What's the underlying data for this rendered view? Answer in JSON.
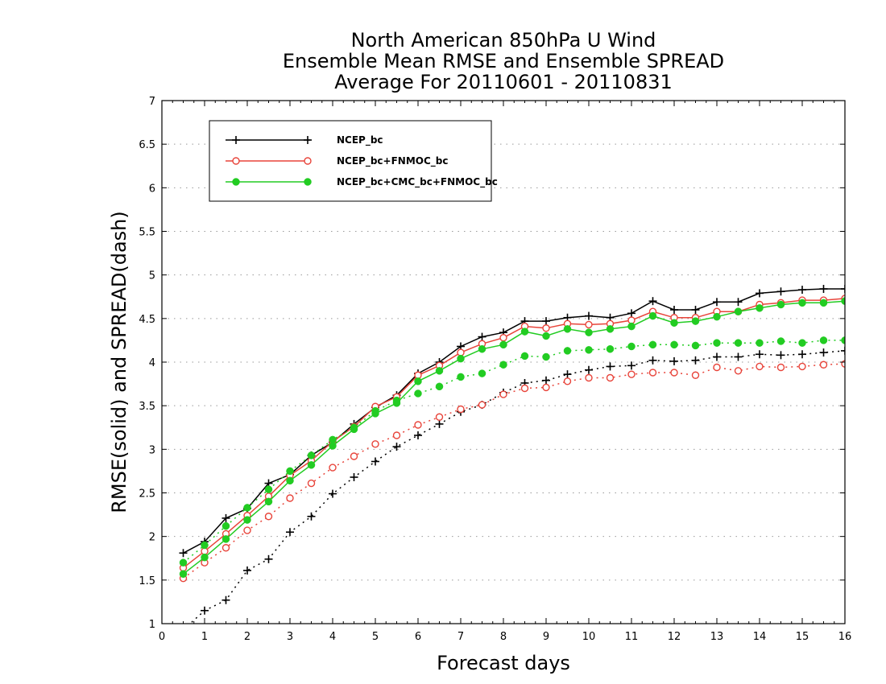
{
  "chart_data": {
    "type": "line",
    "title": [
      "North American 850hPa U Wind",
      "Ensemble Mean RMSE and Ensemble SPREAD",
      "Average For 20110601 - 20110831"
    ],
    "xlabel": "Forecast days",
    "ylabel": "RMSE(solid) and SPREAD(dash)",
    "xlim": [
      0,
      16
    ],
    "ylim": [
      1,
      7
    ],
    "xticks": [
      "0",
      "1",
      "2",
      "3",
      "4",
      "5",
      "6",
      "7",
      "8",
      "9",
      "10",
      "11",
      "12",
      "13",
      "14",
      "15",
      "16"
    ],
    "yticks": [
      "1",
      "1.5",
      "2",
      "2.5",
      "3",
      "3.5",
      "4",
      "4.5",
      "5",
      "5.5",
      "6",
      "6.5",
      "7"
    ],
    "grid": true,
    "legend_position": "top-left",
    "x": [
      0.5,
      1,
      1.5,
      2,
      2.5,
      3,
      3.5,
      4,
      4.5,
      5,
      5.5,
      6,
      6.5,
      7,
      7.5,
      8,
      8.5,
      9,
      9.5,
      10,
      10.5,
      11,
      11.5,
      12,
      12.5,
      13,
      13.5,
      14,
      14.5,
      15,
      15.5,
      16
    ],
    "series": [
      {
        "name": "NCEP_bc",
        "color": "#000000",
        "marker": "plus",
        "rmse": [
          1.81,
          1.94,
          2.21,
          2.32,
          2.61,
          2.71,
          2.93,
          3.08,
          3.29,
          3.48,
          3.62,
          3.87,
          4.0,
          4.18,
          4.29,
          4.34,
          4.47,
          4.47,
          4.51,
          4.53,
          4.51,
          4.56,
          4.7,
          4.6,
          4.6,
          4.69,
          4.69,
          4.79,
          4.81,
          4.83,
          4.84,
          4.84
        ],
        "spread": [
          0.93,
          1.15,
          1.27,
          1.61,
          1.74,
          2.05,
          2.23,
          2.49,
          2.68,
          2.86,
          3.03,
          3.16,
          3.29,
          3.43,
          3.51,
          3.65,
          3.76,
          3.79,
          3.86,
          3.91,
          3.95,
          3.96,
          4.02,
          4.01,
          4.02,
          4.06,
          4.06,
          4.09,
          4.08,
          4.09,
          4.11,
          4.13
        ]
      },
      {
        "name": "NCEP_bc+FNMOC_bc",
        "color": "#e8443a",
        "marker": "open-circle",
        "rmse": [
          1.64,
          1.83,
          2.03,
          2.24,
          2.46,
          2.7,
          2.87,
          3.09,
          3.26,
          3.49,
          3.6,
          3.85,
          3.96,
          4.11,
          4.21,
          4.28,
          4.41,
          4.39,
          4.44,
          4.43,
          4.44,
          4.48,
          4.58,
          4.51,
          4.51,
          4.58,
          4.58,
          4.66,
          4.68,
          4.71,
          4.71,
          4.73
        ],
        "spread": [
          1.52,
          1.7,
          1.87,
          2.07,
          2.23,
          2.44,
          2.61,
          2.79,
          2.92,
          3.06,
          3.16,
          3.28,
          3.37,
          3.46,
          3.51,
          3.63,
          3.7,
          3.71,
          3.78,
          3.82,
          3.82,
          3.86,
          3.88,
          3.88,
          3.85,
          3.94,
          3.9,
          3.95,
          3.94,
          3.95,
          3.97,
          3.98
        ]
      },
      {
        "name": "NCEP_bc+CMC_bc+FNMOC_bc",
        "color": "#22cc22",
        "marker": "filled-circle",
        "rmse": [
          1.57,
          1.76,
          1.97,
          2.19,
          2.4,
          2.64,
          2.82,
          3.04,
          3.23,
          3.41,
          3.53,
          3.78,
          3.9,
          4.04,
          4.15,
          4.2,
          4.35,
          4.3,
          4.38,
          4.34,
          4.38,
          4.41,
          4.53,
          4.45,
          4.47,
          4.52,
          4.58,
          4.62,
          4.66,
          4.68,
          4.68,
          4.7
        ],
        "spread": [
          1.7,
          1.9,
          2.12,
          2.33,
          2.54,
          2.75,
          2.93,
          3.11,
          3.25,
          3.44,
          3.56,
          3.64,
          3.72,
          3.83,
          3.87,
          3.97,
          4.07,
          4.06,
          4.13,
          4.14,
          4.15,
          4.18,
          4.2,
          4.2,
          4.19,
          4.22,
          4.22,
          4.22,
          4.24,
          4.22,
          4.25,
          4.25
        ]
      }
    ]
  }
}
